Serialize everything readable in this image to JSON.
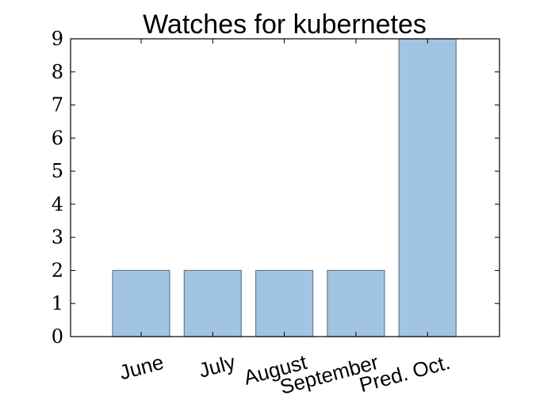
{
  "chart_data": {
    "type": "bar",
    "title": "Watches for kubernetes",
    "xlabel": "",
    "ylabel": "",
    "categories": [
      "June",
      "July",
      "August",
      "September",
      "Pred. Oct."
    ],
    "values": [
      2,
      2,
      2,
      2,
      9
    ],
    "ylim": [
      0,
      9
    ],
    "yticks": [
      "0",
      "1",
      "2",
      "3",
      "4",
      "5",
      "6",
      "7",
      "8",
      "9"
    ],
    "grid": false,
    "legend": "none",
    "colors": {
      "bar_fill": "#a1c4e4",
      "bar_edge": "#6b7b88",
      "axes": "#000000"
    }
  }
}
